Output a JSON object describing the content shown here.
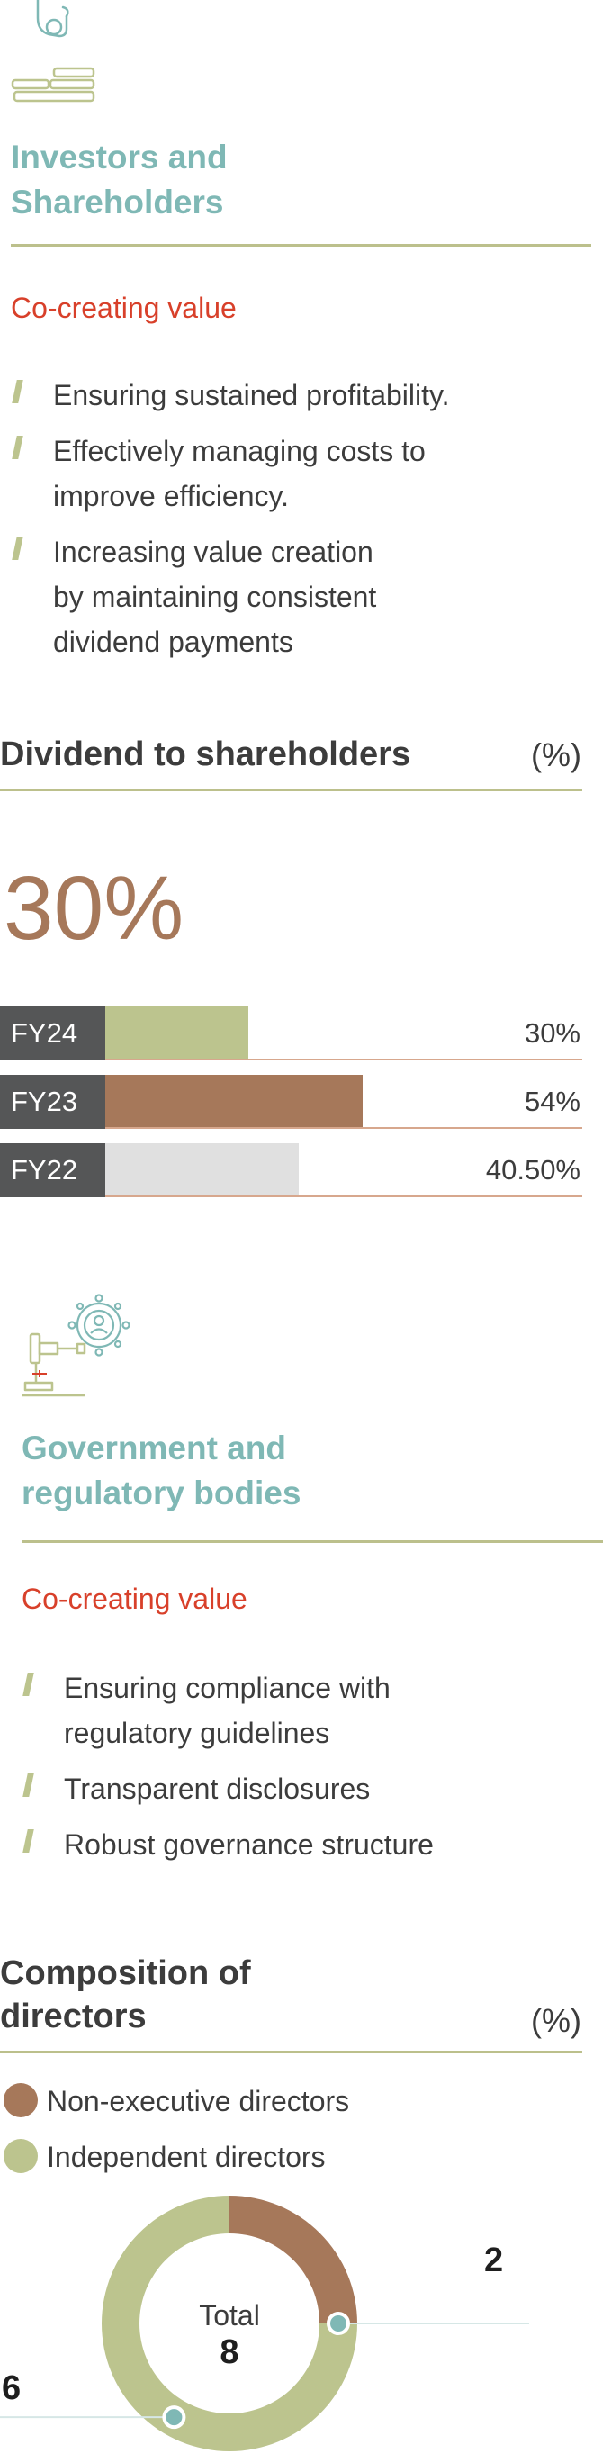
{
  "investors": {
    "title_line1": "Investors and",
    "title_line2": "Shareholders",
    "subtitle": "Co-creating value",
    "bullets": [
      {
        "lines": [
          "Ensuring sustained profitability."
        ]
      },
      {
        "lines": [
          "Effectively managing costs to",
          "improve efficiency."
        ]
      },
      {
        "lines": [
          "Increasing value creation",
          "by maintaining consistent",
          "dividend payments"
        ]
      }
    ]
  },
  "dividend": {
    "title": "Dividend to shareholders",
    "unit": "(%)",
    "highlight": "30%"
  },
  "government": {
    "title_line1": "Government and",
    "title_line2": "regulatory bodies",
    "subtitle": "Co-creating value",
    "bullets": [
      {
        "lines": [
          "Ensuring compliance with",
          "regulatory guidelines"
        ]
      },
      {
        "lines": [
          "Transparent disclosures"
        ]
      },
      {
        "lines": [
          "Robust governance structure"
        ]
      }
    ]
  },
  "directors": {
    "title_line1": "Composition of",
    "title_line2": "directors",
    "unit": "(%)",
    "center_label": "Total",
    "center_value": "8"
  },
  "colors": {
    "teal": "#7fb8b5",
    "red": "#d8402a",
    "olive": "#bcc48e",
    "brown": "#a6785a",
    "grey": "#e0e0e0",
    "dark": "#555657"
  },
  "icons": [
    "hand-coins-icon",
    "gavel-person-icon"
  ],
  "chart_data": [
    {
      "type": "bar",
      "title": "Dividend to shareholders",
      "unit": "(%)",
      "categories": [
        "FY24",
        "FY23",
        "FY22"
      ],
      "values": [
        30,
        54,
        40.5
      ],
      "value_labels": [
        "30%",
        "54%",
        "40.50%"
      ],
      "bar_colors": [
        "#bcc48e",
        "#a6785a",
        "#e0e0e0"
      ],
      "xlim": [
        0,
        100
      ],
      "orientation": "horizontal"
    },
    {
      "type": "pie",
      "title": "Composition of directors",
      "donut": true,
      "categories": [
        "Non-executive directors",
        "Independent directors"
      ],
      "values": [
        2,
        6
      ],
      "value_labels": [
        "2",
        "6"
      ],
      "colors": [
        "#a6785a",
        "#bcc48e"
      ],
      "total_label": "Total",
      "total": "8",
      "legend_position": "top-left"
    }
  ]
}
